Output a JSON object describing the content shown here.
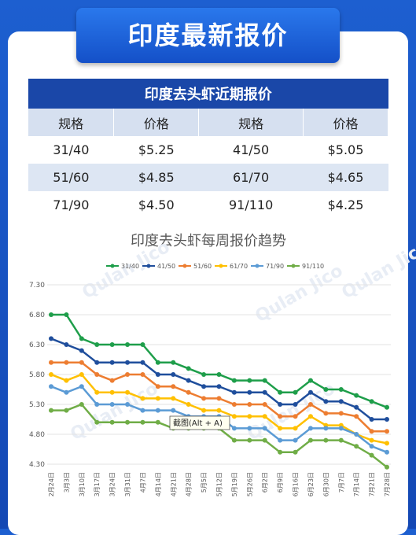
{
  "header": {
    "title": "印度最新报价"
  },
  "table": {
    "title": "印度去头虾近期报价",
    "header": [
      "规格",
      "价格",
      "规格",
      "价格"
    ],
    "rows": [
      [
        "31/40",
        "$5.25",
        "41/50",
        "$5.05"
      ],
      [
        "51/60",
        "$4.85",
        "61/70",
        "$4.65"
      ],
      [
        "71/90",
        "$4.50",
        "91/110",
        "$4.25"
      ]
    ]
  },
  "tooltip": "截图(Alt + A)",
  "watermark": "Qulan Jico",
  "chart_data": {
    "type": "line",
    "title": "印度去头虾每周报价趋势",
    "categories": [
      "2月24日",
      "3月3日",
      "3月10日",
      "3月17日",
      "3月24日",
      "3月31日",
      "4月7日",
      "4月14日",
      "4月21日",
      "4月28日",
      "5月5日",
      "5月12日",
      "5月19日",
      "5月26日",
      "6月2日",
      "6月9日",
      "6月16日",
      "6月23日",
      "6月30日",
      "7月7日",
      "7月14日",
      "7月21日",
      "7月28日"
    ],
    "series": [
      {
        "name": "31/40",
        "color": "#1e9e4a",
        "values": [
          6.8,
          6.8,
          6.4,
          6.3,
          6.3,
          6.3,
          6.3,
          6.0,
          6.0,
          5.9,
          5.8,
          5.8,
          5.7,
          5.7,
          5.7,
          5.5,
          5.5,
          5.7,
          5.55,
          5.55,
          5.45,
          5.35,
          5.25
        ]
      },
      {
        "name": "41/50",
        "color": "#1f4e9c",
        "values": [
          6.4,
          6.3,
          6.2,
          6.0,
          6.0,
          6.0,
          6.0,
          5.8,
          5.8,
          5.7,
          5.6,
          5.6,
          5.5,
          5.5,
          5.5,
          5.3,
          5.3,
          5.5,
          5.35,
          5.35,
          5.25,
          5.05,
          5.05
        ]
      },
      {
        "name": "51/60",
        "color": "#ed7d31",
        "values": [
          6.0,
          6.0,
          6.0,
          5.8,
          5.7,
          5.8,
          5.8,
          5.6,
          5.6,
          5.5,
          5.4,
          5.4,
          5.3,
          5.3,
          5.3,
          5.1,
          5.1,
          5.3,
          5.15,
          5.15,
          5.1,
          4.85,
          4.85
        ]
      },
      {
        "name": "61/70",
        "color": "#ffc000",
        "values": [
          5.8,
          5.7,
          5.8,
          5.5,
          5.5,
          5.5,
          5.4,
          5.4,
          5.4,
          5.3,
          5.2,
          5.2,
          5.1,
          5.1,
          5.1,
          4.9,
          4.9,
          5.1,
          4.95,
          4.95,
          4.8,
          4.7,
          4.65
        ]
      },
      {
        "name": "71/90",
        "color": "#5b9bd5",
        "values": [
          5.6,
          5.5,
          5.6,
          5.3,
          5.3,
          5.3,
          5.2,
          5.2,
          5.2,
          5.1,
          5.1,
          5.1,
          4.9,
          4.9,
          4.9,
          4.7,
          4.7,
          4.9,
          4.9,
          4.9,
          4.8,
          4.6,
          4.5
        ]
      },
      {
        "name": "91/110",
        "color": "#70ad47",
        "values": [
          5.2,
          5.2,
          5.3,
          5.0,
          5.0,
          5.0,
          5.0,
          5.0,
          4.9,
          4.9,
          4.9,
          4.9,
          4.7,
          4.7,
          4.7,
          4.5,
          4.5,
          4.7,
          4.7,
          4.7,
          4.6,
          4.45,
          4.25
        ]
      }
    ],
    "ylim": [
      4.3,
      7.3
    ],
    "yticks": [
      {
        "value": 4.3,
        "label": "4.30"
      },
      {
        "value": 4.8,
        "label": "4.80"
      },
      {
        "value": 5.3,
        "label": "5.30"
      },
      {
        "value": 5.8,
        "label": "5.80"
      },
      {
        "value": 6.3,
        "label": "6.30"
      },
      {
        "value": 6.8,
        "label": "6.80"
      },
      {
        "value": 7.3,
        "label": "7.30"
      }
    ],
    "grid": true,
    "legend": "top"
  }
}
